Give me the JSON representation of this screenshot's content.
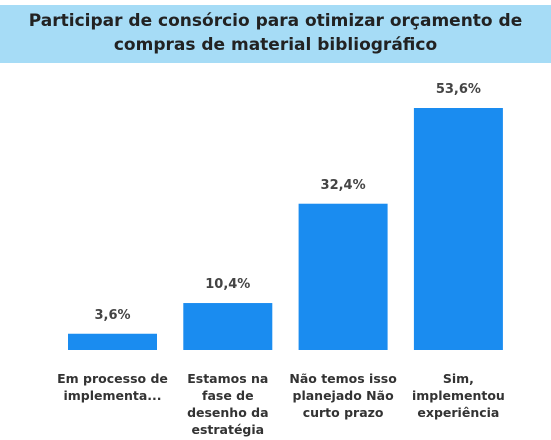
{
  "chart_data": {
    "type": "bar",
    "title": "Participar de consórcio para otimizar orçamento de compras de material bibliográfico",
    "categories": [
      "Em processo de implementa...",
      "Estamos na fase de desenho da estratégia",
      "Não temos isso planejado Não curto prazo",
      "Sim, implementou experiência"
    ],
    "values": [
      3.6,
      10.4,
      32.4,
      53.6
    ],
    "value_labels": [
      "3,6%",
      "10,4%",
      "32,4%",
      "53,6%"
    ],
    "color": "#1a8cf0"
  }
}
